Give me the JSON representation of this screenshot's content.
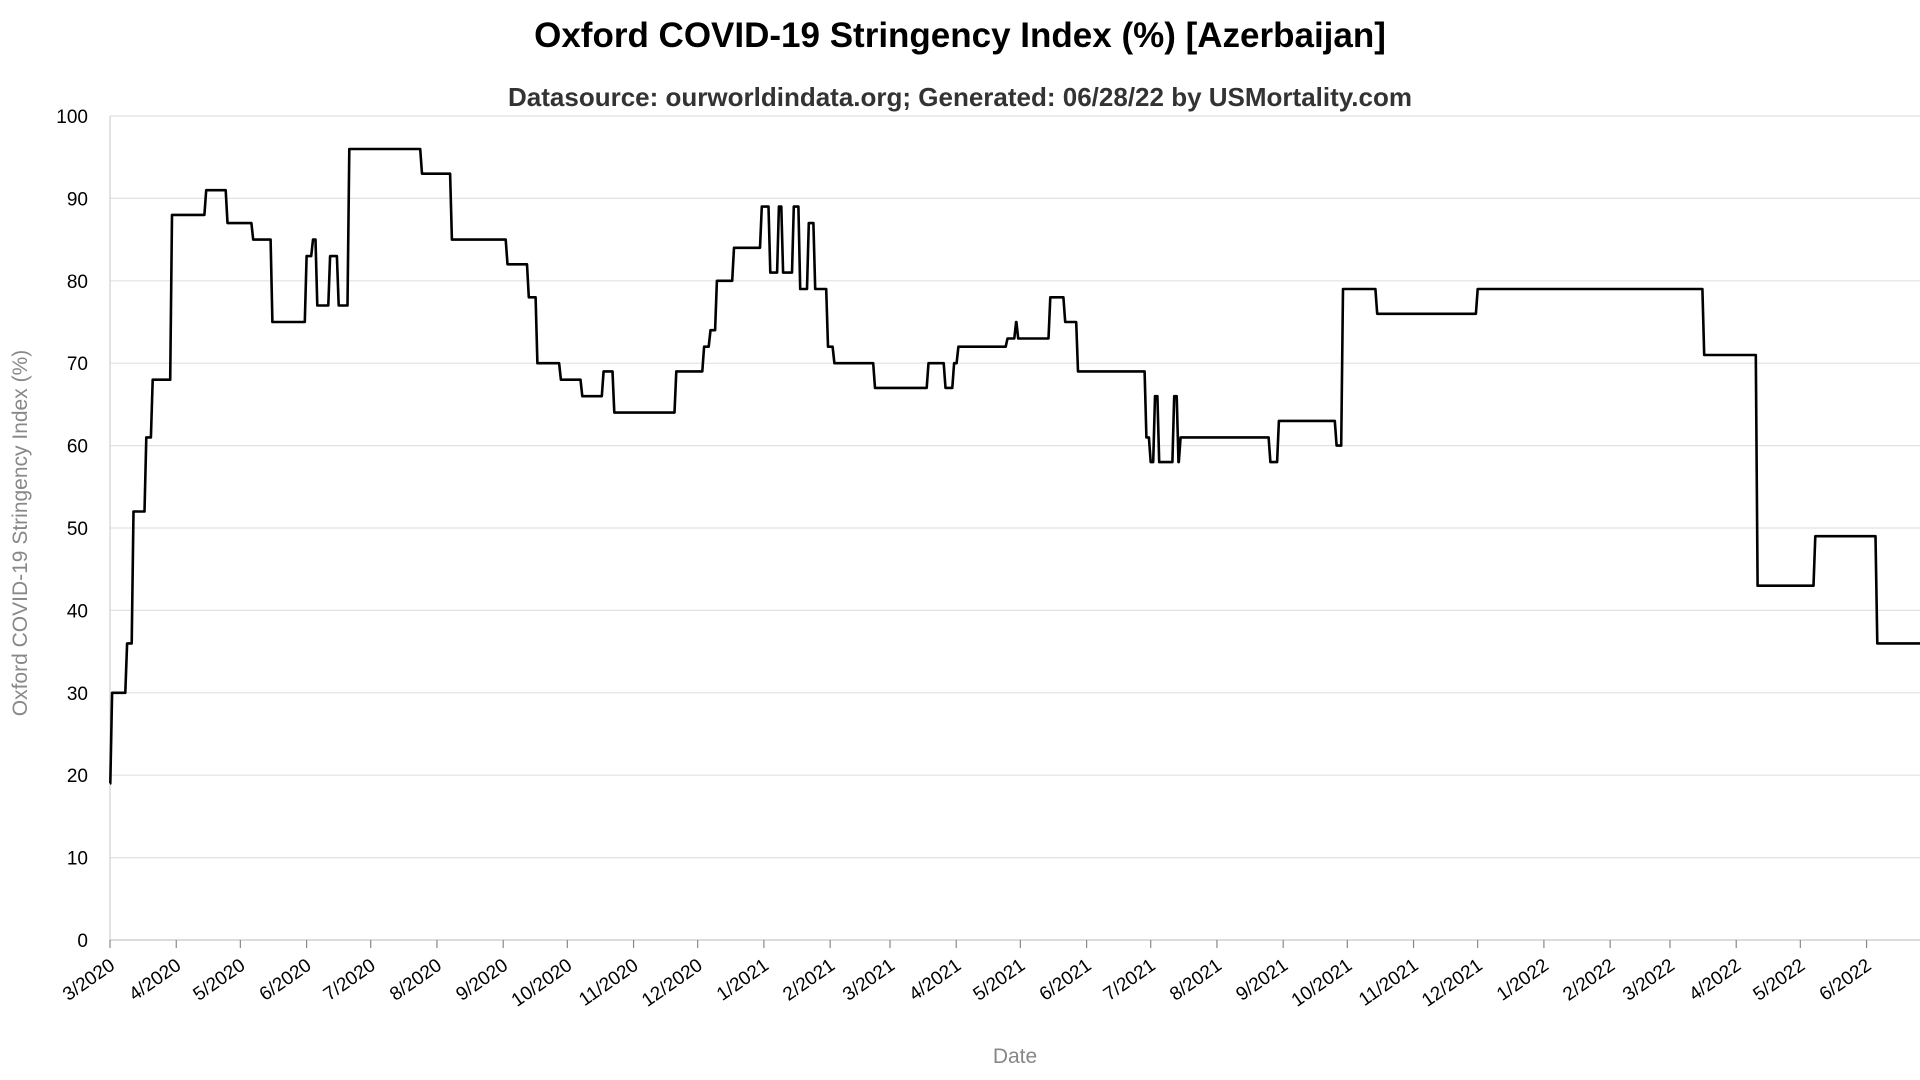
{
  "chart_data": {
    "type": "line",
    "title": "Oxford COVID-19 Stringency Index (%) [Azerbaijan]",
    "subtitle": "Datasource: ourworldindata.org; Generated: 06/28/22 by USMortality.com",
    "xlabel": "Date",
    "ylabel": "Oxford COVID-19 Stringency Index (%)",
    "ylim": [
      0,
      100
    ],
    "y_ticks": [
      0,
      10,
      20,
      30,
      40,
      50,
      60,
      70,
      80,
      90,
      100
    ],
    "x_ticks": [
      "3/2020",
      "4/2020",
      "5/2020",
      "6/2020",
      "7/2020",
      "8/2020",
      "9/2020",
      "10/2020",
      "11/2020",
      "12/2020",
      "1/2021",
      "2/2021",
      "3/2021",
      "4/2021",
      "5/2021",
      "6/2021",
      "7/2021",
      "8/2021",
      "9/2021",
      "10/2021",
      "11/2021",
      "12/2021",
      "1/2022",
      "2/2022",
      "3/2022",
      "4/2022",
      "5/2022",
      "6/2022"
    ],
    "grid": true,
    "line_color": "#000000",
    "series": [
      {
        "points": [
          [
            "2020-03-01",
            19
          ],
          [
            "2020-03-02",
            30
          ],
          [
            "2020-03-09",
            36
          ],
          [
            "2020-03-12",
            52
          ],
          [
            "2020-03-18",
            61
          ],
          [
            "2020-03-21",
            68
          ],
          [
            "2020-03-30",
            88
          ],
          [
            "2020-04-15",
            91
          ],
          [
            "2020-04-25",
            87
          ],
          [
            "2020-05-07",
            85
          ],
          [
            "2020-05-16",
            75
          ],
          [
            "2020-06-01",
            83
          ],
          [
            "2020-06-04",
            85
          ],
          [
            "2020-06-06",
            77
          ],
          [
            "2020-06-12",
            83
          ],
          [
            "2020-06-16",
            77
          ],
          [
            "2020-06-21",
            96
          ],
          [
            "2020-07-25",
            93
          ],
          [
            "2020-08-08",
            85
          ],
          [
            "2020-09-03",
            82
          ],
          [
            "2020-09-13",
            78
          ],
          [
            "2020-09-17",
            70
          ],
          [
            "2020-09-28",
            68
          ],
          [
            "2020-10-08",
            66
          ],
          [
            "2020-10-18",
            69
          ],
          [
            "2020-10-23",
            64
          ],
          [
            "2020-11-21",
            69
          ],
          [
            "2020-12-04",
            72
          ],
          [
            "2020-12-07",
            74
          ],
          [
            "2020-12-10",
            80
          ],
          [
            "2020-12-18",
            84
          ],
          [
            "2020-12-31",
            89
          ],
          [
            "2021-01-04",
            81
          ],
          [
            "2021-01-08",
            89
          ],
          [
            "2021-01-10",
            81
          ],
          [
            "2021-01-15",
            89
          ],
          [
            "2021-01-18",
            79
          ],
          [
            "2021-01-22",
            87
          ],
          [
            "2021-01-25",
            79
          ],
          [
            "2021-01-31",
            72
          ],
          [
            "2021-02-03",
            70
          ],
          [
            "2021-02-22",
            67
          ],
          [
            "2021-03-19",
            70
          ],
          [
            "2021-03-27",
            67
          ],
          [
            "2021-03-31",
            70
          ],
          [
            "2021-04-02",
            72
          ],
          [
            "2021-04-25",
            73
          ],
          [
            "2021-04-29",
            75
          ],
          [
            "2021-04-30",
            73
          ],
          [
            "2021-05-15",
            78
          ],
          [
            "2021-05-22",
            75
          ],
          [
            "2021-05-28",
            69
          ],
          [
            "2021-06-29",
            61
          ],
          [
            "2021-07-01",
            58
          ],
          [
            "2021-07-03",
            66
          ],
          [
            "2021-07-05",
            58
          ],
          [
            "2021-07-12",
            66
          ],
          [
            "2021-07-14",
            58
          ],
          [
            "2021-07-15",
            61
          ],
          [
            "2021-08-26",
            58
          ],
          [
            "2021-08-30",
            63
          ],
          [
            "2021-09-26",
            60
          ],
          [
            "2021-09-29",
            79
          ],
          [
            "2021-10-15",
            76
          ],
          [
            "2021-12-01",
            79
          ],
          [
            "2022-03-17",
            71
          ],
          [
            "2022-04-11",
            43
          ],
          [
            "2022-05-08",
            49
          ],
          [
            "2022-06-06",
            36
          ],
          [
            "2022-06-26",
            36
          ]
        ]
      }
    ]
  }
}
